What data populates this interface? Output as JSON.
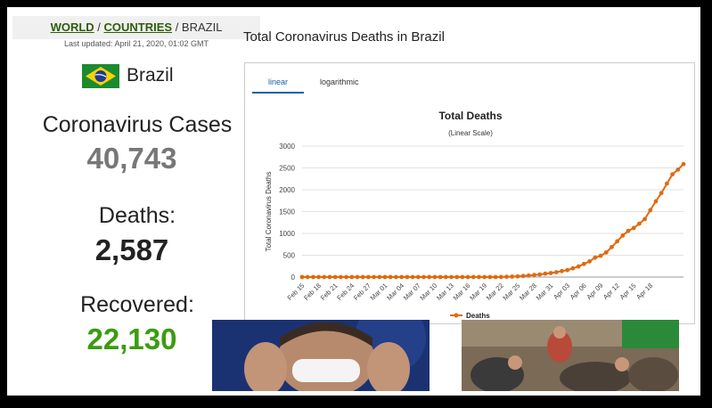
{
  "breadcrumb": {
    "world": "WORLD",
    "sep1": " / ",
    "countries": "COUNTRIES",
    "sep2": " / ",
    "current": "BRAZIL"
  },
  "last_updated": "Last updated: April 21, 2020, 01:02 GMT",
  "country": {
    "name": "Brazil"
  },
  "stats": {
    "cases_label": "Coronavirus Cases",
    "cases_value": "40,743",
    "deaths_label": "Deaths:",
    "deaths_value": "2,587",
    "recovered_label": "Recovered:",
    "recovered_value": "22,130"
  },
  "colors": {
    "cases": "#777777",
    "deaths": "#222222",
    "recovered": "#3b9c0f",
    "series": "#e06a10"
  },
  "chart_panel_title": "Total Coronavirus Deaths in Brazil",
  "tabs": [
    {
      "label": "linear",
      "active": true
    },
    {
      "label": "logarithmic",
      "active": false
    }
  ],
  "chart_data": {
    "type": "line",
    "title": "Total Deaths",
    "subtitle": "(Linear Scale)",
    "ylabel": "Total Coronavirus Deaths",
    "xlabel": "",
    "ylim": [
      0,
      3000
    ],
    "yticks": [
      0,
      500,
      1000,
      1500,
      2000,
      2500,
      3000
    ],
    "xticks": [
      "Feb 15",
      "Feb 18",
      "Feb 21",
      "Feb 24",
      "Feb 27",
      "Mar 01",
      "Mar 04",
      "Mar 07",
      "Mar 10",
      "Mar 13",
      "Mar 16",
      "Mar 19",
      "Mar 22",
      "Mar 25",
      "Mar 28",
      "Mar 31",
      "Apr 03",
      "Apr 06",
      "Apr 09",
      "Apr 12",
      "Apr 15",
      "Apr 18"
    ],
    "legend": "bottom",
    "grid": true,
    "series": [
      {
        "name": "Deaths",
        "x_start": "Feb 15",
        "values": [
          0,
          0,
          0,
          0,
          0,
          0,
          0,
          0,
          0,
          0,
          0,
          0,
          0,
          0,
          0,
          0,
          0,
          0,
          0,
          0,
          0,
          0,
          0,
          0,
          0,
          0,
          0,
          0,
          0,
          0,
          0,
          0,
          0,
          0,
          0,
          1,
          3,
          6,
          11,
          15,
          25,
          34,
          46,
          59,
          77,
          92,
          111,
          136,
          159,
          201,
          240,
          299,
          359,
          445,
          486,
          564,
          686,
          819,
          950,
          1057,
          1124,
          1223,
          1328,
          1532,
          1736,
          1924,
          2141,
          2354,
          2462,
          2587
        ]
      }
    ]
  }
}
